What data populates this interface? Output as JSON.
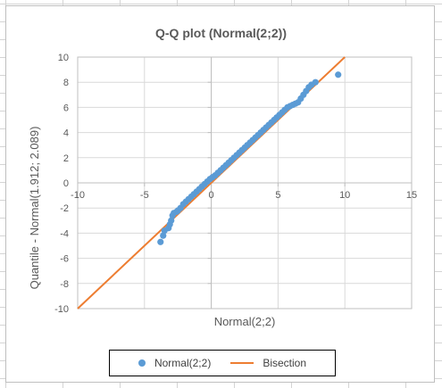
{
  "chart_data": {
    "type": "scatter",
    "title": "Q-Q plot (Normal(2;2))",
    "xlabel": "Normal(2;2)",
    "ylabel": "Quantile - Normal(1.912; 2.089)",
    "xlim": [
      -10,
      15
    ],
    "ylim": [
      -10,
      10
    ],
    "xticks": [
      -10,
      -5,
      0,
      5,
      10,
      15
    ],
    "yticks": [
      -10,
      -8,
      -6,
      -4,
      -2,
      0,
      2,
      4,
      6,
      8,
      10
    ],
    "grid": true,
    "legend_position": "bottom",
    "series": [
      {
        "name": "Normal(2;2)",
        "kind": "scatter",
        "color": "#5b9bd5",
        "x": [
          -3.8,
          -3.6,
          -3.5,
          -3.2,
          -3.1,
          -3.0,
          -2.9,
          -2.8,
          -2.6,
          -2.5,
          -2.3,
          -2.1,
          -1.9,
          -1.7,
          -1.5,
          -1.3,
          -1.1,
          -0.9,
          -0.7,
          -0.5,
          -0.3,
          -0.1,
          0.1,
          0.3,
          0.5,
          0.7,
          0.9,
          1.1,
          1.3,
          1.5,
          1.7,
          1.9,
          2.1,
          2.3,
          2.5,
          2.7,
          2.9,
          3.1,
          3.3,
          3.5,
          3.7,
          3.9,
          4.1,
          4.3,
          4.5,
          4.7,
          4.9,
          5.1,
          5.3,
          5.5,
          5.7,
          5.9,
          6.1,
          6.3,
          6.5,
          6.7,
          6.9,
          7.1,
          7.3,
          7.5,
          7.8,
          9.5
        ],
        "y": [
          -4.7,
          -4.2,
          -3.8,
          -3.6,
          -3.3,
          -3.0,
          -2.6,
          -2.4,
          -2.3,
          -2.2,
          -2.0,
          -1.7,
          -1.5,
          -1.3,
          -1.1,
          -0.9,
          -0.7,
          -0.5,
          -0.3,
          -0.1,
          0.1,
          0.3,
          0.45,
          0.6,
          0.8,
          1.0,
          1.2,
          1.4,
          1.6,
          1.8,
          2.0,
          2.2,
          2.4,
          2.6,
          2.8,
          3.0,
          3.2,
          3.4,
          3.6,
          3.8,
          4.0,
          4.2,
          4.4,
          4.6,
          4.8,
          5.0,
          5.2,
          5.4,
          5.6,
          5.8,
          6.0,
          6.1,
          6.2,
          6.3,
          6.4,
          6.7,
          7.0,
          7.3,
          7.6,
          7.8,
          8.0,
          8.6
        ]
      },
      {
        "name": "Bisection",
        "kind": "line",
        "color": "#ed7d31",
        "x": [
          -10,
          10
        ],
        "y": [
          -10,
          10
        ]
      }
    ]
  }
}
